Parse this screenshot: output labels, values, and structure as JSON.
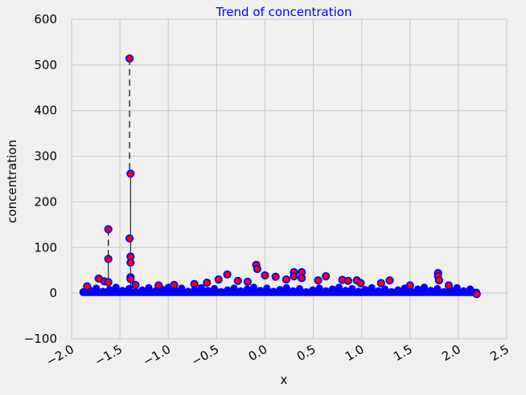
{
  "chart_data": {
    "type": "scatter",
    "title": "Trend of concentration",
    "xlabel": "x",
    "ylabel": "concentration",
    "xlim": [
      -2.0,
      2.5
    ],
    "ylim": [
      -100,
      600
    ],
    "x_ticks": [
      -2.0,
      -1.5,
      -1.0,
      -0.5,
      0.0,
      0.5,
      1.0,
      1.5,
      2.0,
      2.5
    ],
    "y_ticks": [
      -100,
      0,
      100,
      200,
      300,
      400,
      500,
      600
    ],
    "x_tick_labels": [
      "−2.0",
      "−1.5",
      "−1.0",
      "−0.5",
      "0.0",
      "0.5",
      "1.0",
      "1.5",
      "2.0",
      "2.5"
    ],
    "y_tick_labels": [
      "−100",
      "0",
      "100",
      "200",
      "300",
      "400",
      "500",
      "600"
    ],
    "grid": true,
    "colors": {
      "marker_fill": "#ff0000",
      "marker_edge": "#0000ff",
      "connector": "#000000",
      "title": "#0000ff",
      "grid": "#cbcbcb",
      "background": "#f0f0f0"
    },
    "baseline": {
      "x_start": -1.88,
      "x_end": 2.19,
      "y_value": 0,
      "band_y_min": -5,
      "band_y_max": 7
    },
    "points": [
      {
        "x": -1.84,
        "y": 15
      },
      {
        "x": -1.72,
        "y": 32
      },
      {
        "x": -1.66,
        "y": 26
      },
      {
        "x": -1.62,
        "y": 140
      },
      {
        "x": -1.62,
        "y": 75
      },
      {
        "x": -1.62,
        "y": 24
      },
      {
        "x": -1.4,
        "y": 514
      },
      {
        "x": -1.39,
        "y": 262
      },
      {
        "x": -1.4,
        "y": 120
      },
      {
        "x": -1.39,
        "y": 80
      },
      {
        "x": -1.39,
        "y": 67
      },
      {
        "x": -1.39,
        "y": 35
      },
      {
        "x": -1.39,
        "y": 31
      },
      {
        "x": -1.34,
        "y": 18
      },
      {
        "x": -1.1,
        "y": 17
      },
      {
        "x": -0.94,
        "y": 18
      },
      {
        "x": -0.73,
        "y": 20
      },
      {
        "x": -0.6,
        "y": 23
      },
      {
        "x": -0.48,
        "y": 30
      },
      {
        "x": -0.39,
        "y": 41
      },
      {
        "x": -0.28,
        "y": 27
      },
      {
        "x": -0.18,
        "y": 25
      },
      {
        "x": -0.09,
        "y": 62
      },
      {
        "x": -0.08,
        "y": 53
      },
      {
        "x": 0.0,
        "y": 39
      },
      {
        "x": 0.11,
        "y": 36
      },
      {
        "x": 0.22,
        "y": 30
      },
      {
        "x": 0.3,
        "y": 46
      },
      {
        "x": 0.3,
        "y": 37
      },
      {
        "x": 0.38,
        "y": 46
      },
      {
        "x": 0.38,
        "y": 33
      },
      {
        "x": 0.55,
        "y": 28
      },
      {
        "x": 0.63,
        "y": 37
      },
      {
        "x": 0.8,
        "y": 29
      },
      {
        "x": 0.86,
        "y": 27
      },
      {
        "x": 0.95,
        "y": 28
      },
      {
        "x": 0.99,
        "y": 22
      },
      {
        "x": 1.2,
        "y": 22
      },
      {
        "x": 1.29,
        "y": 28
      },
      {
        "x": 1.5,
        "y": 17
      },
      {
        "x": 1.79,
        "y": 44
      },
      {
        "x": 1.79,
        "y": 37
      },
      {
        "x": 1.8,
        "y": 28
      },
      {
        "x": 1.9,
        "y": 17
      },
      {
        "x": 2.19,
        "y": -2
      }
    ],
    "dashed_connectors": [
      {
        "x": -1.4,
        "y_from": 514,
        "y_to": 262
      },
      {
        "x": -1.62,
        "y_from": 140,
        "y_to": 75
      }
    ],
    "solid_connectors": [
      {
        "x": -1.39,
        "y_from": 262,
        "y_to": 0
      },
      {
        "x": -1.62,
        "y_from": 75,
        "y_to": 0
      }
    ]
  }
}
